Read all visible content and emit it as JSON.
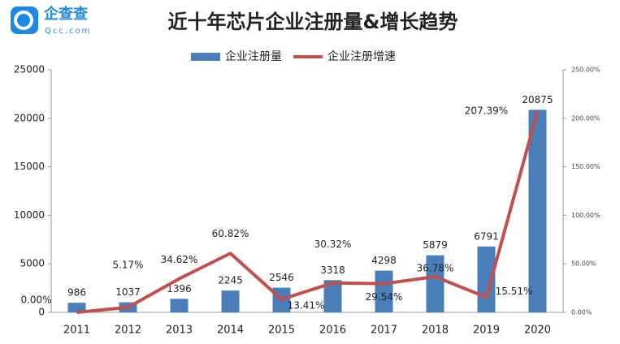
{
  "chart_data": {
    "type": "bar-line",
    "title": "近十年芯片企业注册量&增长趋势",
    "logo": {
      "text": "企查查",
      "subtext": "Qcc.com"
    },
    "categories": [
      "2011",
      "2012",
      "2013",
      "2014",
      "2015",
      "2016",
      "2017",
      "2018",
      "2019",
      "2020"
    ],
    "series": [
      {
        "name": "企业注册量",
        "type": "bar",
        "color": "#4a7ebb",
        "values": [
          986,
          1037,
          1396,
          2245,
          2546,
          3318,
          4298,
          5879,
          6791,
          20875
        ]
      },
      {
        "name": "企业注册增速",
        "type": "line",
        "axis": "y2",
        "color": "#c0504d",
        "values": [
          0,
          5.17,
          34.62,
          60.82,
          13.41,
          30.32,
          29.54,
          36.78,
          15.51,
          207.39
        ],
        "value_labels": [
          "0.00%",
          "5.17%",
          "34.62%",
          "60.82%",
          "13.41%",
          "30.32%",
          "29.54%",
          "36.78%",
          "15.51%",
          "207.39%"
        ]
      }
    ],
    "ylim": [
      0,
      25000
    ],
    "yticks": [
      0,
      5000,
      10000,
      15000,
      20000,
      25000
    ],
    "y2lim": [
      0,
      250
    ],
    "y2ticks": [
      {
        "value": 0,
        "label": "0.00%"
      },
      {
        "value": 50,
        "label": "50.00%"
      },
      {
        "value": 100,
        "label": "100.00%"
      },
      {
        "value": 150,
        "label": "150.00%"
      },
      {
        "value": 200,
        "label": "200.00%"
      },
      {
        "value": 250,
        "label": "250.00%"
      }
    ],
    "legend": "top"
  }
}
